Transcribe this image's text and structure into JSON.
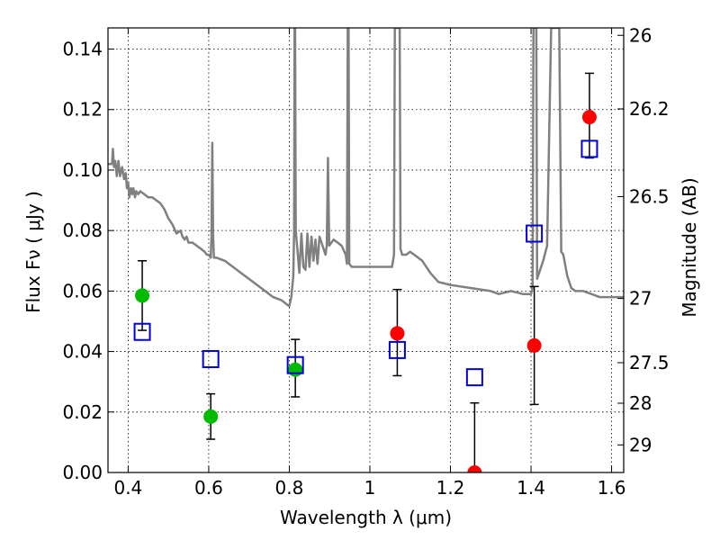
{
  "chart_data": {
    "type": "scatter",
    "title": "",
    "xlabel": "Wavelength  λ (μm)",
    "ylabel": "Flux  Fν  ( μJy )",
    "ylabel_right": "Magnitude (AB)",
    "xlim": [
      0.35,
      1.63
    ],
    "ylim": [
      0.0,
      0.147
    ],
    "grid": true,
    "x_ticks": [
      {
        "value": 0.4,
        "label": "0.4"
      },
      {
        "value": 0.6,
        "label": "0.6"
      },
      {
        "value": 0.8,
        "label": "0.8"
      },
      {
        "value": 1.0,
        "label": "1"
      },
      {
        "value": 1.2,
        "label": "1.2"
      },
      {
        "value": 1.4,
        "label": "1.4"
      },
      {
        "value": 1.6,
        "label": "1.6"
      }
    ],
    "y_ticks": [
      {
        "value": 0.0,
        "label": "0.00"
      },
      {
        "value": 0.02,
        "label": "0.02"
      },
      {
        "value": 0.04,
        "label": "0.04"
      },
      {
        "value": 0.06,
        "label": "0.06"
      },
      {
        "value": 0.08,
        "label": "0.08"
      },
      {
        "value": 0.1,
        "label": "0.10"
      },
      {
        "value": 0.12,
        "label": "0.12"
      },
      {
        "value": 0.14,
        "label": "0.14"
      }
    ],
    "right_ticks": [
      {
        "mag": 26,
        "label": "26"
      },
      {
        "mag": 26.2,
        "label": "26.2"
      },
      {
        "mag": 26.5,
        "label": "26.5"
      },
      {
        "mag": 27,
        "label": "27"
      },
      {
        "mag": 27.5,
        "label": "27.5"
      },
      {
        "mag": 28,
        "label": "28"
      },
      {
        "mag": 29,
        "label": "29"
      }
    ],
    "series": [
      {
        "kind": "line",
        "color": "#808080",
        "points": [
          [
            0.35,
            0.102
          ],
          [
            0.36,
            0.102
          ],
          [
            0.362,
            0.107
          ],
          [
            0.365,
            0.101
          ],
          [
            0.368,
            0.103
          ],
          [
            0.372,
            0.098
          ],
          [
            0.376,
            0.103
          ],
          [
            0.38,
            0.098
          ],
          [
            0.385,
            0.101
          ],
          [
            0.39,
            0.097
          ],
          [
            0.394,
            0.099
          ],
          [
            0.397,
            0.094
          ],
          [
            0.4,
            0.096
          ],
          [
            0.403,
            0.091
          ],
          [
            0.407,
            0.094
          ],
          [
            0.41,
            0.092
          ],
          [
            0.413,
            0.094
          ],
          [
            0.417,
            0.091
          ],
          [
            0.42,
            0.093
          ],
          [
            0.425,
            0.092
          ],
          [
            0.43,
            0.093
          ],
          [
            0.44,
            0.092
          ],
          [
            0.45,
            0.091
          ],
          [
            0.46,
            0.091
          ],
          [
            0.47,
            0.09
          ],
          [
            0.48,
            0.089
          ],
          [
            0.49,
            0.087
          ],
          [
            0.5,
            0.084
          ],
          [
            0.51,
            0.082
          ],
          [
            0.52,
            0.079
          ],
          [
            0.53,
            0.08
          ],
          [
            0.535,
            0.078
          ],
          [
            0.54,
            0.077
          ],
          [
            0.545,
            0.078
          ],
          [
            0.55,
            0.076
          ],
          [
            0.56,
            0.076
          ],
          [
            0.57,
            0.075
          ],
          [
            0.58,
            0.074
          ],
          [
            0.59,
            0.073
          ],
          [
            0.595,
            0.072
          ],
          [
            0.6,
            0.072
          ],
          [
            0.605,
            0.071
          ],
          [
            0.607,
            0.078
          ],
          [
            0.609,
            0.109
          ],
          [
            0.611,
            0.078
          ],
          [
            0.613,
            0.071
          ],
          [
            0.62,
            0.071
          ],
          [
            0.64,
            0.07
          ],
          [
            0.66,
            0.068
          ],
          [
            0.68,
            0.066
          ],
          [
            0.7,
            0.064
          ],
          [
            0.72,
            0.062
          ],
          [
            0.74,
            0.06
          ],
          [
            0.76,
            0.058
          ],
          [
            0.78,
            0.057
          ],
          [
            0.8,
            0.055
          ],
          [
            0.805,
            0.058
          ],
          [
            0.81,
            0.065
          ],
          [
            0.812,
            0.08
          ],
          [
            0.813,
            0.147
          ],
          [
            0.8145,
            0.147
          ],
          [
            0.816,
            0.08
          ],
          [
            0.82,
            0.074
          ],
          [
            0.825,
            0.066
          ],
          [
            0.83,
            0.079
          ],
          [
            0.835,
            0.068
          ],
          [
            0.84,
            0.067
          ],
          [
            0.845,
            0.079
          ],
          [
            0.85,
            0.068
          ],
          [
            0.855,
            0.078
          ],
          [
            0.86,
            0.07
          ],
          [
            0.865,
            0.077
          ],
          [
            0.87,
            0.069
          ],
          [
            0.875,
            0.078
          ],
          [
            0.88,
            0.076
          ],
          [
            0.885,
            0.074
          ],
          [
            0.89,
            0.072
          ],
          [
            0.893,
            0.075
          ],
          [
            0.896,
            0.104
          ],
          [
            0.899,
            0.075
          ],
          [
            0.91,
            0.077
          ],
          [
            0.92,
            0.076
          ],
          [
            0.93,
            0.075
          ],
          [
            0.94,
            0.072
          ],
          [
            0.943,
            0.069
          ],
          [
            0.945,
            0.147
          ],
          [
            0.947,
            0.147
          ],
          [
            0.949,
            0.069
          ],
          [
            0.955,
            0.068
          ],
          [
            0.97,
            0.068
          ],
          [
            1.0,
            0.068
          ],
          [
            1.02,
            0.068
          ],
          [
            1.04,
            0.068
          ],
          [
            1.055,
            0.068
          ],
          [
            1.06,
            0.072
          ],
          [
            1.062,
            0.147
          ],
          [
            1.074,
            0.147
          ],
          [
            1.076,
            0.074
          ],
          [
            1.08,
            0.072
          ],
          [
            1.09,
            0.072
          ],
          [
            1.1,
            0.073
          ],
          [
            1.11,
            0.072
          ],
          [
            1.12,
            0.071
          ],
          [
            1.13,
            0.07
          ],
          [
            1.15,
            0.066
          ],
          [
            1.17,
            0.063
          ],
          [
            1.2,
            0.062
          ],
          [
            1.25,
            0.061
          ],
          [
            1.3,
            0.06
          ],
          [
            1.32,
            0.059
          ],
          [
            1.35,
            0.06
          ],
          [
            1.38,
            0.059
          ],
          [
            1.4,
            0.059
          ],
          [
            1.404,
            0.061
          ],
          [
            1.406,
            0.147
          ],
          [
            1.413,
            0.147
          ],
          [
            1.415,
            0.064
          ],
          [
            1.42,
            0.066
          ],
          [
            1.43,
            0.07
          ],
          [
            1.44,
            0.075
          ],
          [
            1.45,
            0.147
          ],
          [
            1.47,
            0.147
          ],
          [
            1.475,
            0.073
          ],
          [
            1.48,
            0.072
          ],
          [
            1.49,
            0.065
          ],
          [
            1.5,
            0.061
          ],
          [
            1.51,
            0.06
          ],
          [
            1.53,
            0.06
          ],
          [
            1.55,
            0.059
          ],
          [
            1.57,
            0.058
          ],
          [
            1.59,
            0.058
          ],
          [
            1.61,
            0.058
          ],
          [
            1.63,
            0.058
          ]
        ]
      },
      {
        "kind": "points",
        "marker": "circle",
        "color": "#00bb00",
        "points": [
          {
            "x": 0.435,
            "y": 0.0585,
            "yerr_low": 0.047,
            "yerr_high": 0.07
          },
          {
            "x": 0.605,
            "y": 0.0185,
            "yerr_low": 0.011,
            "yerr_high": 0.026
          },
          {
            "x": 0.815,
            "y": 0.034,
            "yerr_low": 0.025,
            "yerr_high": 0.044
          }
        ]
      },
      {
        "kind": "points",
        "marker": "circle",
        "color": "#ff0000",
        "points": [
          {
            "x": 1.068,
            "y": 0.046,
            "yerr_low": 0.032,
            "yerr_high": 0.0605
          },
          {
            "x": 1.26,
            "y": 0.0,
            "yerr_low": 0.0,
            "yerr_high": 0.023
          },
          {
            "x": 1.408,
            "y": 0.042,
            "yerr_low": 0.0225,
            "yerr_high": 0.0615
          },
          {
            "x": 1.545,
            "y": 0.1175,
            "yerr_low": 0.104,
            "yerr_high": 0.132
          }
        ]
      },
      {
        "kind": "points",
        "marker": "square-open",
        "color": "#0000dd",
        "points": [
          {
            "x": 0.435,
            "y": 0.0465
          },
          {
            "x": 0.605,
            "y": 0.0375
          },
          {
            "x": 0.815,
            "y": 0.0355
          },
          {
            "x": 1.068,
            "y": 0.0405
          },
          {
            "x": 1.26,
            "y": 0.0315
          },
          {
            "x": 1.408,
            "y": 0.079
          },
          {
            "x": 1.545,
            "y": 0.107
          }
        ]
      }
    ]
  }
}
